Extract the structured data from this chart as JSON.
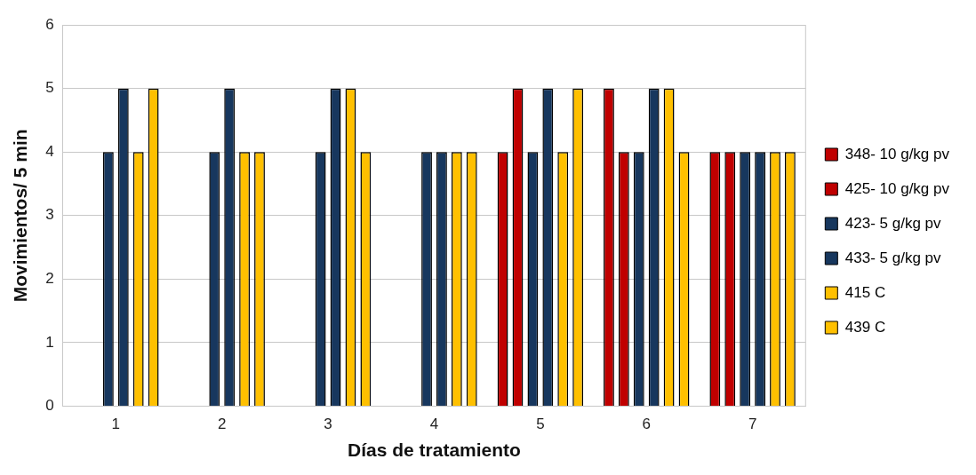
{
  "chart_data": {
    "type": "bar",
    "xlabel": "Días de tratamiento",
    "ylabel": "Movimientos/ 5 min",
    "categories": [
      "1",
      "2",
      "3",
      "4",
      "5",
      "6",
      "7"
    ],
    "series": [
      {
        "name": "348- 10 g/kg pv",
        "color": "#c00000",
        "values": [
          null,
          null,
          null,
          null,
          4,
          5,
          4
        ]
      },
      {
        "name": "425- 10 g/kg pv",
        "color": "#c00000",
        "values": [
          null,
          null,
          null,
          null,
          5,
          4,
          4
        ]
      },
      {
        "name": "423- 5 g/kg pv",
        "color": "#17375e",
        "values": [
          4,
          4,
          4,
          4,
          4,
          4,
          4
        ]
      },
      {
        "name": "433- 5 g/kg pv",
        "color": "#17375e",
        "values": [
          5,
          5,
          5,
          4,
          5,
          5,
          4
        ]
      },
      {
        "name": "415 C",
        "color": "#ffc000",
        "values": [
          4,
          4,
          5,
          4,
          4,
          5,
          4
        ]
      },
      {
        "name": "439 C",
        "color": "#ffc000",
        "values": [
          5,
          4,
          4,
          4,
          5,
          4,
          4
        ]
      }
    ],
    "ylim": [
      0,
      6
    ],
    "yticks": [
      0,
      1,
      2,
      3,
      4,
      5,
      6
    ],
    "grid": "y",
    "legend": "right"
  }
}
